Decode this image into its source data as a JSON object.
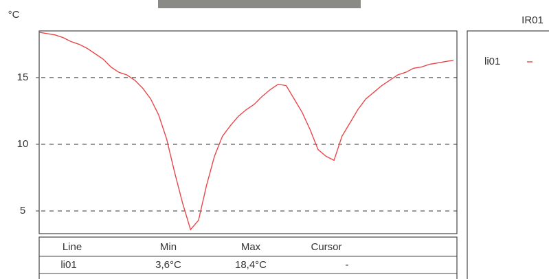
{
  "chart_data": {
    "type": "line",
    "title": "IR01",
    "y_label": "°C",
    "series": [
      {
        "name": "li01",
        "color": "#e8474a",
        "values": [
          18.4,
          18.3,
          18.2,
          18.0,
          17.7,
          17.5,
          17.2,
          16.8,
          16.4,
          15.8,
          15.4,
          15.2,
          14.8,
          14.2,
          13.4,
          12.2,
          10.4,
          7.9,
          5.6,
          3.6,
          4.3,
          6.9,
          9.1,
          10.6,
          11.4,
          12.1,
          12.6,
          13.0,
          13.6,
          14.1,
          14.5,
          14.4,
          13.4,
          12.4,
          11.1,
          9.6,
          9.1,
          8.8,
          10.6,
          11.6,
          12.6,
          13.4,
          13.9,
          14.4,
          14.8,
          15.2,
          15.4,
          15.7,
          15.8,
          16.0,
          16.1,
          16.2,
          16.3
        ]
      }
    ],
    "ylim": [
      3.3,
      18.5
    ],
    "yticks": [
      5,
      10,
      15
    ],
    "grid": true
  },
  "table": {
    "columns": [
      "Line",
      "Min",
      "Max",
      "Cursor"
    ],
    "rows": [
      [
        "li01",
        "3,6°C",
        "18,4°C",
        "-"
      ]
    ]
  }
}
